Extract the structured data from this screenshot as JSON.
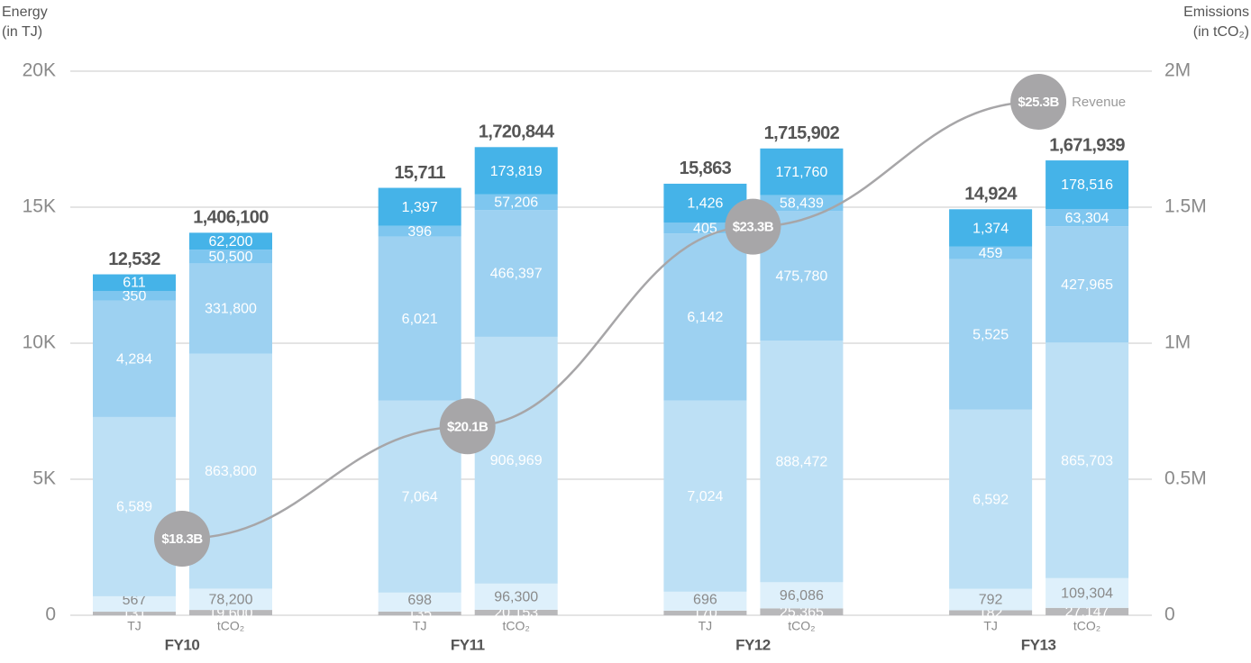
{
  "chart_data": {
    "type": "stacked-bar",
    "ylabel": [
      "Energy",
      "(in TJ)"
    ],
    "y2label": [
      "Emissions",
      "(in tCO₂)"
    ],
    "categories": [
      "FY10",
      "FY11",
      "FY12",
      "FY13"
    ],
    "bar_labels": [
      "TJ",
      "tCO₂"
    ],
    "ylim": [
      0,
      20000
    ],
    "yticks": [
      0,
      {
        "value": 5000,
        "label": "5K"
      },
      {
        "value": 10000,
        "label": "10K"
      },
      {
        "value": 15000,
        "label": "15K"
      },
      {
        "value": 20000,
        "label": "20K"
      }
    ],
    "y2lim": [
      0,
      2000000
    ],
    "y2ticks": [
      0,
      {
        "value": 500000,
        "label": "0.5M"
      },
      {
        "value": 1000000,
        "label": "1M"
      },
      {
        "value": 1500000,
        "label": "1.5M"
      },
      {
        "value": 2000000,
        "label": "2M"
      }
    ],
    "grid": true,
    "series": [
      {
        "axis": "y",
        "color": "#b8b8ba",
        "values": [
          131,
          135,
          170,
          182
        ],
        "value_labels": [
          "131",
          "135",
          "170",
          "182"
        ]
      },
      {
        "axis": "y",
        "color": "#def0fb",
        "values": [
          567,
          698,
          696,
          792
        ],
        "value_labels": [
          "567",
          "698",
          "696",
          "792"
        ]
      },
      {
        "axis": "y",
        "color": "#bde0f5",
        "values": [
          6589,
          7064,
          7024,
          6592
        ],
        "value_labels": [
          "6,589",
          "7,064",
          "7,024",
          "6,592"
        ]
      },
      {
        "axis": "y",
        "color": "#9dd1f1",
        "values": [
          4284,
          6021,
          6142,
          5525
        ],
        "value_labels": [
          "4,284",
          "6,021",
          "6,142",
          "5,525"
        ]
      },
      {
        "axis": "y",
        "color": "#7ec6ef",
        "values": [
          350,
          396,
          405,
          459
        ],
        "value_labels": [
          "350",
          "396",
          "405",
          "459"
        ]
      },
      {
        "axis": "y",
        "color": "#45b3e8",
        "values": [
          611,
          1397,
          1426,
          1374
        ],
        "value_labels": [
          "611",
          "1,397",
          "1,426",
          "1,374"
        ]
      },
      {
        "axis": "y2",
        "color": "#b8b8ba",
        "values": [
          19600,
          20153,
          25365,
          27147
        ],
        "value_labels": [
          "19,600",
          "20,153",
          "25,365",
          "27,147"
        ]
      },
      {
        "axis": "y2",
        "color": "#def0fb",
        "values": [
          78200,
          96300,
          96086,
          109304
        ],
        "value_labels": [
          "78,200",
          "96,300",
          "96,086",
          "109,304"
        ]
      },
      {
        "axis": "y2",
        "color": "#bde0f5",
        "values": [
          863800,
          906969,
          888472,
          865703
        ],
        "value_labels": [
          "863,800",
          "906,969",
          "888,472",
          "865,703"
        ]
      },
      {
        "axis": "y2",
        "color": "#9dd1f1",
        "values": [
          331800,
          466397,
          475780,
          427965
        ],
        "value_labels": [
          "331,800",
          "466,397",
          "475,780",
          "427,965"
        ]
      },
      {
        "axis": "y2",
        "color": "#7ec6ef",
        "values": [
          50500,
          57206,
          58439,
          63304
        ],
        "value_labels": [
          "50,500",
          "57,206",
          "58,439",
          "63,304"
        ]
      },
      {
        "axis": "y2",
        "color": "#45b3e8",
        "values": [
          62200,
          173819,
          171760,
          178516
        ],
        "value_labels": [
          "62,200",
          "173,819",
          "171,760",
          "178,516"
        ]
      }
    ],
    "totals": [
      {
        "axis": "y",
        "values": [
          12532,
          15711,
          15863,
          14924
        ],
        "value_labels": [
          "12,532",
          "15,711",
          "15,863",
          "14,924"
        ]
      },
      {
        "axis": "y2",
        "values": [
          1406100,
          1720844,
          1715902,
          1671939
        ],
        "value_labels": [
          "1,406,100",
          "1,720,844",
          "1,715,902",
          "1,671,939"
        ]
      }
    ],
    "revenue": {
      "name": "Revenue",
      "color": "#a7a6a8",
      "values": [
        18.3,
        20.1,
        23.3,
        25.3
      ],
      "value_labels": [
        "$18.3B",
        "$20.1B",
        "$23.3B",
        "$25.3B"
      ]
    }
  }
}
